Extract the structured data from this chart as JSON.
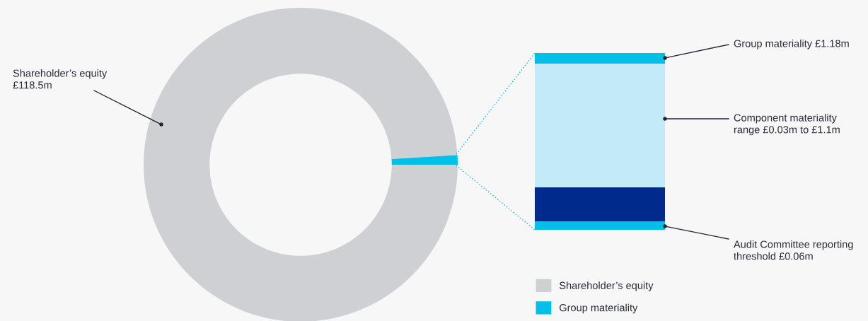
{
  "chart_data": {
    "type": "donut",
    "categories": [
      "Shareholder’s equity",
      "Group materiality"
    ],
    "values": [
      99.01,
      0.99
    ],
    "colors": [
      "#cfd0d3",
      "#00c0e8"
    ],
    "legend": "bottom right",
    "annotations": [
      "Shareholder’s equity\n£118.5m",
      "Group materiality £1.18m",
      "Component materiality\nrange £0.03m to £1.1m",
      "Audit Committee reporting\nthreshold £0.06m"
    ]
  }
}
